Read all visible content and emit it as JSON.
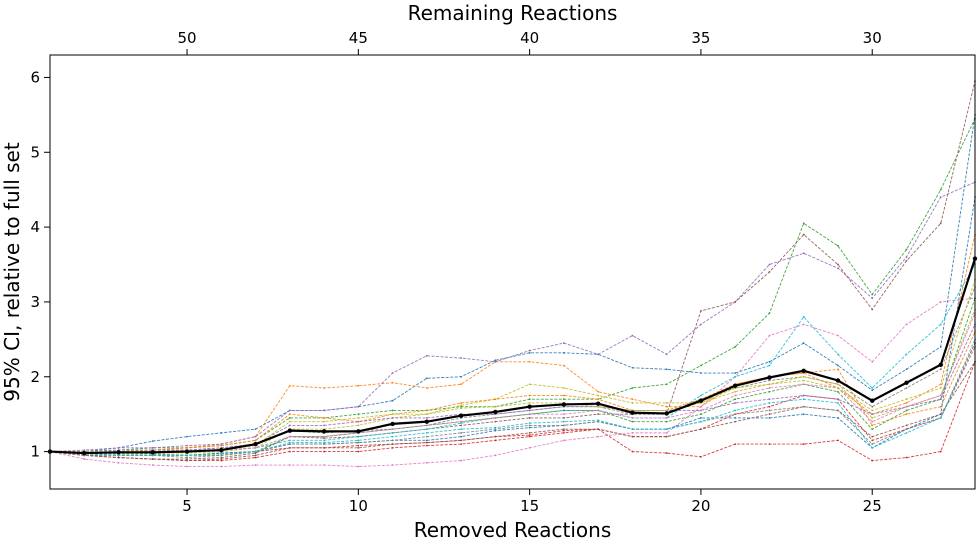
{
  "chart_data": {
    "type": "line",
    "xlabel": "Removed Reactions",
    "x2label": "Remaining Reactions",
    "ylabel": "95% CI, relative to full set",
    "xlim": [
      1,
      28
    ],
    "ylim": [
      0.5,
      6.3
    ],
    "xticks": [
      5,
      10,
      15,
      20,
      25
    ],
    "x2ticks": [
      50,
      45,
      40,
      35,
      30
    ],
    "yticks": [
      1,
      2,
      3,
      4,
      5,
      6
    ],
    "grid": false,
    "x": [
      1,
      2,
      3,
      4,
      5,
      6,
      7,
      8,
      9,
      10,
      11,
      12,
      13,
      14,
      15,
      16,
      17,
      18,
      19,
      20,
      21,
      22,
      23,
      24,
      25,
      26,
      27,
      28
    ],
    "mean_series": {
      "name": "",
      "color": "#000000",
      "values": [
        1.0,
        0.98,
        0.99,
        0.99,
        1.0,
        1.02,
        1.1,
        1.28,
        1.27,
        1.27,
        1.37,
        1.4,
        1.48,
        1.53,
        1.6,
        1.63,
        1.64,
        1.52,
        1.51,
        1.68,
        1.88,
        1.99,
        2.08,
        1.95,
        1.68,
        1.92,
        2.16,
        3.58
      ]
    },
    "series": [
      {
        "color": "#1f77b4",
        "values": [
          1.0,
          1.0,
          1.05,
          1.14,
          1.2,
          1.25,
          1.3,
          1.55,
          1.55,
          1.6,
          1.68,
          1.98,
          2.0,
          2.22,
          2.32,
          2.32,
          2.3,
          2.12,
          2.1,
          2.05,
          2.05,
          2.2,
          2.45,
          2.15,
          1.82,
          2.1,
          2.4,
          5.5
        ]
      },
      {
        "color": "#ff7f0e",
        "values": [
          1.0,
          0.98,
          1.0,
          1.02,
          1.05,
          1.1,
          1.2,
          1.88,
          1.85,
          1.88,
          1.92,
          1.85,
          1.9,
          2.2,
          2.2,
          2.15,
          1.8,
          1.7,
          1.6,
          1.6,
          1.9,
          2.0,
          2.05,
          2.1,
          1.35,
          1.5,
          1.6,
          2.6
        ]
      },
      {
        "color": "#2ca02c",
        "values": [
          1.0,
          1.0,
          1.02,
          1.05,
          1.05,
          1.08,
          1.15,
          1.45,
          1.45,
          1.5,
          1.55,
          1.55,
          1.6,
          1.6,
          1.7,
          1.7,
          1.7,
          1.85,
          1.9,
          2.15,
          2.4,
          2.85,
          4.05,
          3.75,
          3.1,
          3.7,
          4.5,
          5.45
        ]
      },
      {
        "color": "#d62728",
        "values": [
          1.0,
          0.97,
          0.95,
          0.95,
          0.95,
          0.98,
          1.0,
          1.05,
          1.05,
          1.08,
          1.1,
          1.12,
          1.15,
          1.2,
          1.22,
          1.28,
          1.3,
          1.0,
          0.98,
          0.93,
          1.1,
          1.1,
          1.1,
          1.15,
          0.88,
          0.92,
          1.0,
          2.2
        ]
      },
      {
        "color": "#9467bd",
        "values": [
          1.0,
          1.02,
          1.05,
          1.05,
          1.08,
          1.1,
          1.2,
          1.55,
          1.55,
          1.6,
          2.05,
          2.28,
          2.25,
          2.2,
          2.35,
          2.45,
          2.3,
          2.55,
          2.3,
          2.7,
          3.0,
          3.5,
          3.65,
          3.45,
          3.05,
          3.6,
          4.4,
          4.6
        ]
      },
      {
        "color": "#8c564b",
        "values": [
          1.0,
          0.95,
          0.92,
          0.9,
          0.9,
          0.92,
          0.98,
          1.2,
          1.18,
          1.2,
          1.25,
          1.3,
          1.35,
          1.4,
          1.45,
          1.45,
          1.5,
          1.5,
          1.5,
          2.88,
          3.0,
          3.4,
          3.9,
          3.5,
          2.9,
          3.55,
          4.05,
          5.95
        ]
      },
      {
        "color": "#e377c2",
        "values": [
          1.0,
          0.9,
          0.85,
          0.82,
          0.8,
          0.8,
          0.82,
          0.82,
          0.82,
          0.8,
          0.82,
          0.85,
          0.88,
          0.95,
          1.05,
          1.15,
          1.2,
          1.25,
          1.25,
          1.6,
          2.0,
          2.55,
          2.7,
          2.55,
          2.2,
          2.7,
          3.0,
          3.05
        ]
      },
      {
        "color": "#7f7f7f",
        "values": [
          1.0,
          0.98,
          1.0,
          1.0,
          1.02,
          1.05,
          1.1,
          1.28,
          1.25,
          1.28,
          1.3,
          1.35,
          1.45,
          1.5,
          1.55,
          1.6,
          1.6,
          1.5,
          1.5,
          1.7,
          1.85,
          1.95,
          2.0,
          1.9,
          1.6,
          1.85,
          2.1,
          3.2
        ]
      },
      {
        "color": "#bcbd22",
        "values": [
          1.0,
          0.97,
          0.98,
          0.98,
          0.98,
          1.0,
          1.05,
          1.3,
          1.3,
          1.35,
          1.45,
          1.5,
          1.62,
          1.7,
          1.9,
          1.85,
          1.75,
          1.65,
          1.65,
          1.65,
          1.85,
          1.9,
          2.0,
          1.9,
          1.45,
          1.6,
          1.75,
          2.9
        ]
      },
      {
        "color": "#17becf",
        "values": [
          1.0,
          1.0,
          1.0,
          1.0,
          1.0,
          1.02,
          1.05,
          1.15,
          1.15,
          1.2,
          1.25,
          1.3,
          1.38,
          1.45,
          1.5,
          1.55,
          1.55,
          1.45,
          1.45,
          1.75,
          2.0,
          2.15,
          2.8,
          2.3,
          1.85,
          2.3,
          2.7,
          3.5
        ]
      },
      {
        "color": "#1f77b4",
        "values": [
          1.0,
          0.95,
          0.95,
          0.95,
          0.95,
          0.98,
          1.0,
          1.1,
          1.1,
          1.12,
          1.15,
          1.15,
          1.2,
          1.28,
          1.32,
          1.35,
          1.4,
          1.3,
          1.3,
          1.45,
          1.45,
          1.45,
          1.5,
          1.45,
          1.05,
          1.3,
          1.5,
          4.4
        ]
      },
      {
        "color": "#ff7f0e",
        "values": [
          1.0,
          1.0,
          1.0,
          1.02,
          1.05,
          1.08,
          1.15,
          1.5,
          1.45,
          1.4,
          1.5,
          1.55,
          1.65,
          1.7,
          1.75,
          1.75,
          1.7,
          1.55,
          1.55,
          1.7,
          1.9,
          2.0,
          2.05,
          1.85,
          1.5,
          1.65,
          1.9,
          3.9
        ]
      },
      {
        "color": "#2ca02c",
        "values": [
          1.0,
          0.97,
          0.97,
          0.97,
          0.95,
          0.95,
          1.0,
          1.2,
          1.2,
          1.25,
          1.3,
          1.35,
          1.4,
          1.45,
          1.5,
          1.55,
          1.55,
          1.4,
          1.4,
          1.5,
          1.7,
          1.8,
          1.9,
          1.8,
          1.3,
          1.55,
          1.7,
          3.05
        ]
      },
      {
        "color": "#d62728",
        "values": [
          1.0,
          0.95,
          0.92,
          0.9,
          0.88,
          0.88,
          0.92,
          1.0,
          1.0,
          1.0,
          1.05,
          1.08,
          1.1,
          1.15,
          1.2,
          1.25,
          1.3,
          1.2,
          1.2,
          1.3,
          1.5,
          1.6,
          1.75,
          1.7,
          1.15,
          1.3,
          1.45,
          2.45
        ]
      },
      {
        "color": "#9467bd",
        "values": [
          1.0,
          1.0,
          1.02,
          1.02,
          1.02,
          1.05,
          1.1,
          1.35,
          1.35,
          1.4,
          1.45,
          1.45,
          1.5,
          1.5,
          1.55,
          1.6,
          1.6,
          1.55,
          1.55,
          1.55,
          1.65,
          1.7,
          1.75,
          1.7,
          1.5,
          1.6,
          1.7,
          2.7
        ]
      },
      {
        "color": "#8c564b",
        "values": [
          1.0,
          0.95,
          0.92,
          0.9,
          0.88,
          0.9,
          0.95,
          1.05,
          1.05,
          1.05,
          1.1,
          1.12,
          1.15,
          1.2,
          1.25,
          1.3,
          1.3,
          1.2,
          1.2,
          1.3,
          1.4,
          1.5,
          1.6,
          1.55,
          1.2,
          1.35,
          1.5,
          2.2
        ]
      },
      {
        "color": "#e377c2",
        "values": [
          1.0,
          0.98,
          0.98,
          1.0,
          1.0,
          1.02,
          1.05,
          1.2,
          1.2,
          1.25,
          1.3,
          1.35,
          1.4,
          1.45,
          1.5,
          1.5,
          1.55,
          1.45,
          1.45,
          1.55,
          1.75,
          1.85,
          1.9,
          1.85,
          1.4,
          1.6,
          1.75,
          2.85
        ]
      },
      {
        "color": "#7f7f7f",
        "values": [
          1.0,
          0.95,
          0.95,
          0.95,
          0.92,
          0.95,
          1.0,
          1.1,
          1.1,
          1.12,
          1.15,
          1.2,
          1.25,
          1.3,
          1.35,
          1.35,
          1.4,
          1.3,
          1.3,
          1.4,
          1.5,
          1.55,
          1.6,
          1.55,
          1.1,
          1.3,
          1.45,
          2.4
        ]
      },
      {
        "color": "#bcbd22",
        "values": [
          1.0,
          1.0,
          1.0,
          1.0,
          1.0,
          1.02,
          1.08,
          1.4,
          1.4,
          1.45,
          1.5,
          1.5,
          1.58,
          1.6,
          1.65,
          1.65,
          1.6,
          1.55,
          1.55,
          1.65,
          1.8,
          1.9,
          1.95,
          1.85,
          1.55,
          1.7,
          1.85,
          3.3
        ]
      },
      {
        "color": "#17becf",
        "values": [
          1.0,
          0.97,
          0.95,
          0.95,
          0.95,
          0.97,
          1.0,
          1.12,
          1.12,
          1.15,
          1.2,
          1.25,
          1.3,
          1.32,
          1.38,
          1.4,
          1.42,
          1.3,
          1.3,
          1.4,
          1.55,
          1.65,
          1.7,
          1.65,
          1.05,
          1.25,
          1.45,
          2.5
        ]
      }
    ]
  }
}
